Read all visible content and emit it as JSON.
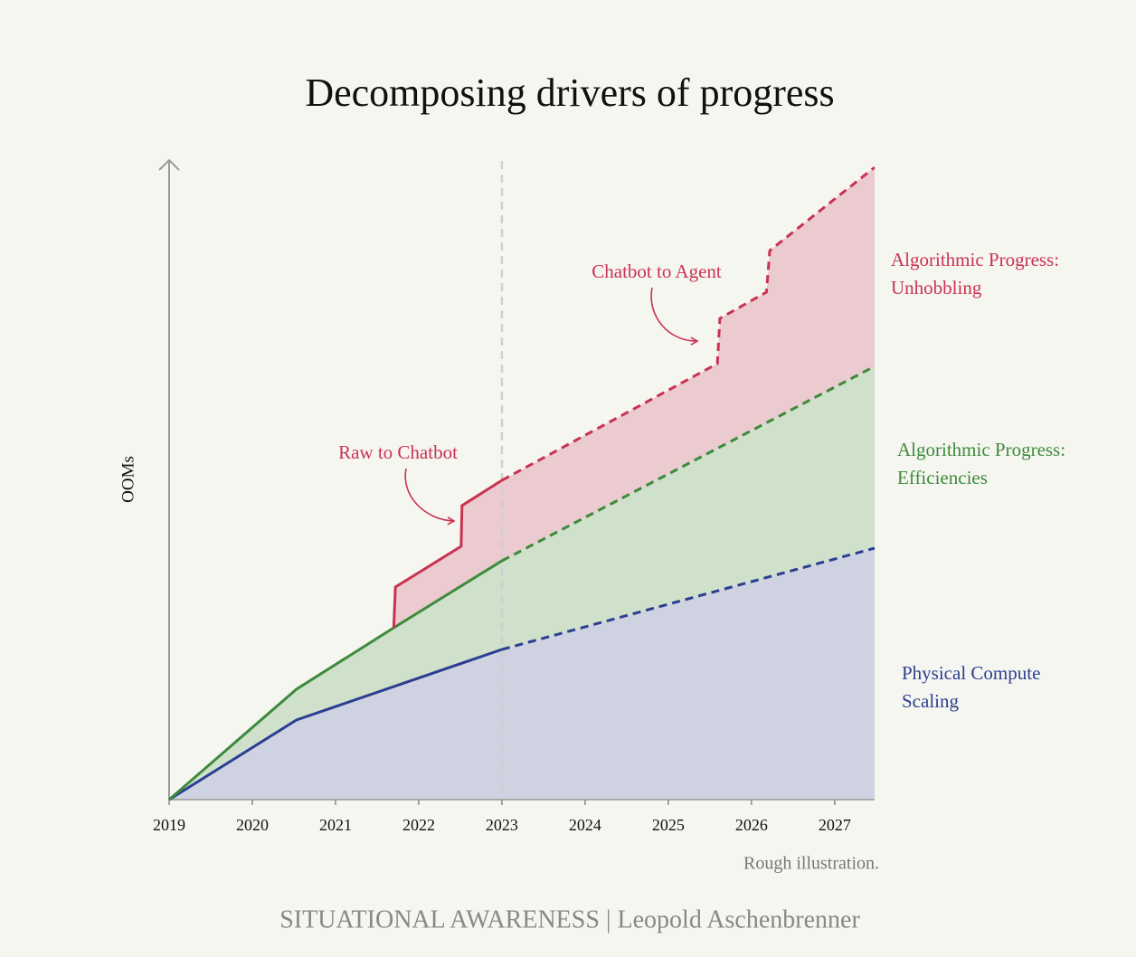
{
  "chart_data": {
    "type": "line",
    "title": "Decomposing drivers of progress",
    "ylabel": "OOMs",
    "note": "Rough illustration.",
    "footer": "SITUATIONAL AWARENESS | Leopold Aschenbrenner",
    "xlim": [
      2019,
      2027.48
    ],
    "ylim": [
      0,
      7
    ],
    "xticks": [
      2019,
      2020,
      2021,
      2022,
      2023,
      2024,
      2025,
      2026,
      2027
    ],
    "forecast_start": 2023,
    "series": [
      {
        "name": "Physical Compute Scaling",
        "color": "#2b3e90",
        "fill": "#cfd3e1",
        "x": [
          2019,
          2020.53,
          2023,
          2027.48
        ],
        "values": [
          0,
          0.88,
          1.66,
          2.78
        ]
      },
      {
        "name": "Algorithmic Progress: Efficiencies",
        "color": "#3e8a3b",
        "fill": "#cfe0cb",
        "x": [
          2019,
          2020.53,
          2021.7,
          2023,
          2027.48
        ],
        "values": [
          0,
          1.22,
          1.9,
          2.64,
          4.79
        ]
      },
      {
        "name": "Algorithmic Progress: Unhobbling",
        "color": "#c93350",
        "fill": "#ebcad0",
        "x": [
          2021.7,
          2021.72,
          2022.51,
          2022.52,
          2023,
          2025.59,
          2025.62,
          2026.18,
          2026.22,
          2027.48
        ],
        "values": [
          1.9,
          2.35,
          2.8,
          3.25,
          3.53,
          4.82,
          5.32,
          5.61,
          6.07,
          6.99
        ]
      }
    ],
    "annotations": [
      {
        "text": "Raw to Chatbot",
        "color": "#c93350"
      },
      {
        "text": "Chatbot to Agent",
        "color": "#c93350"
      }
    ]
  }
}
